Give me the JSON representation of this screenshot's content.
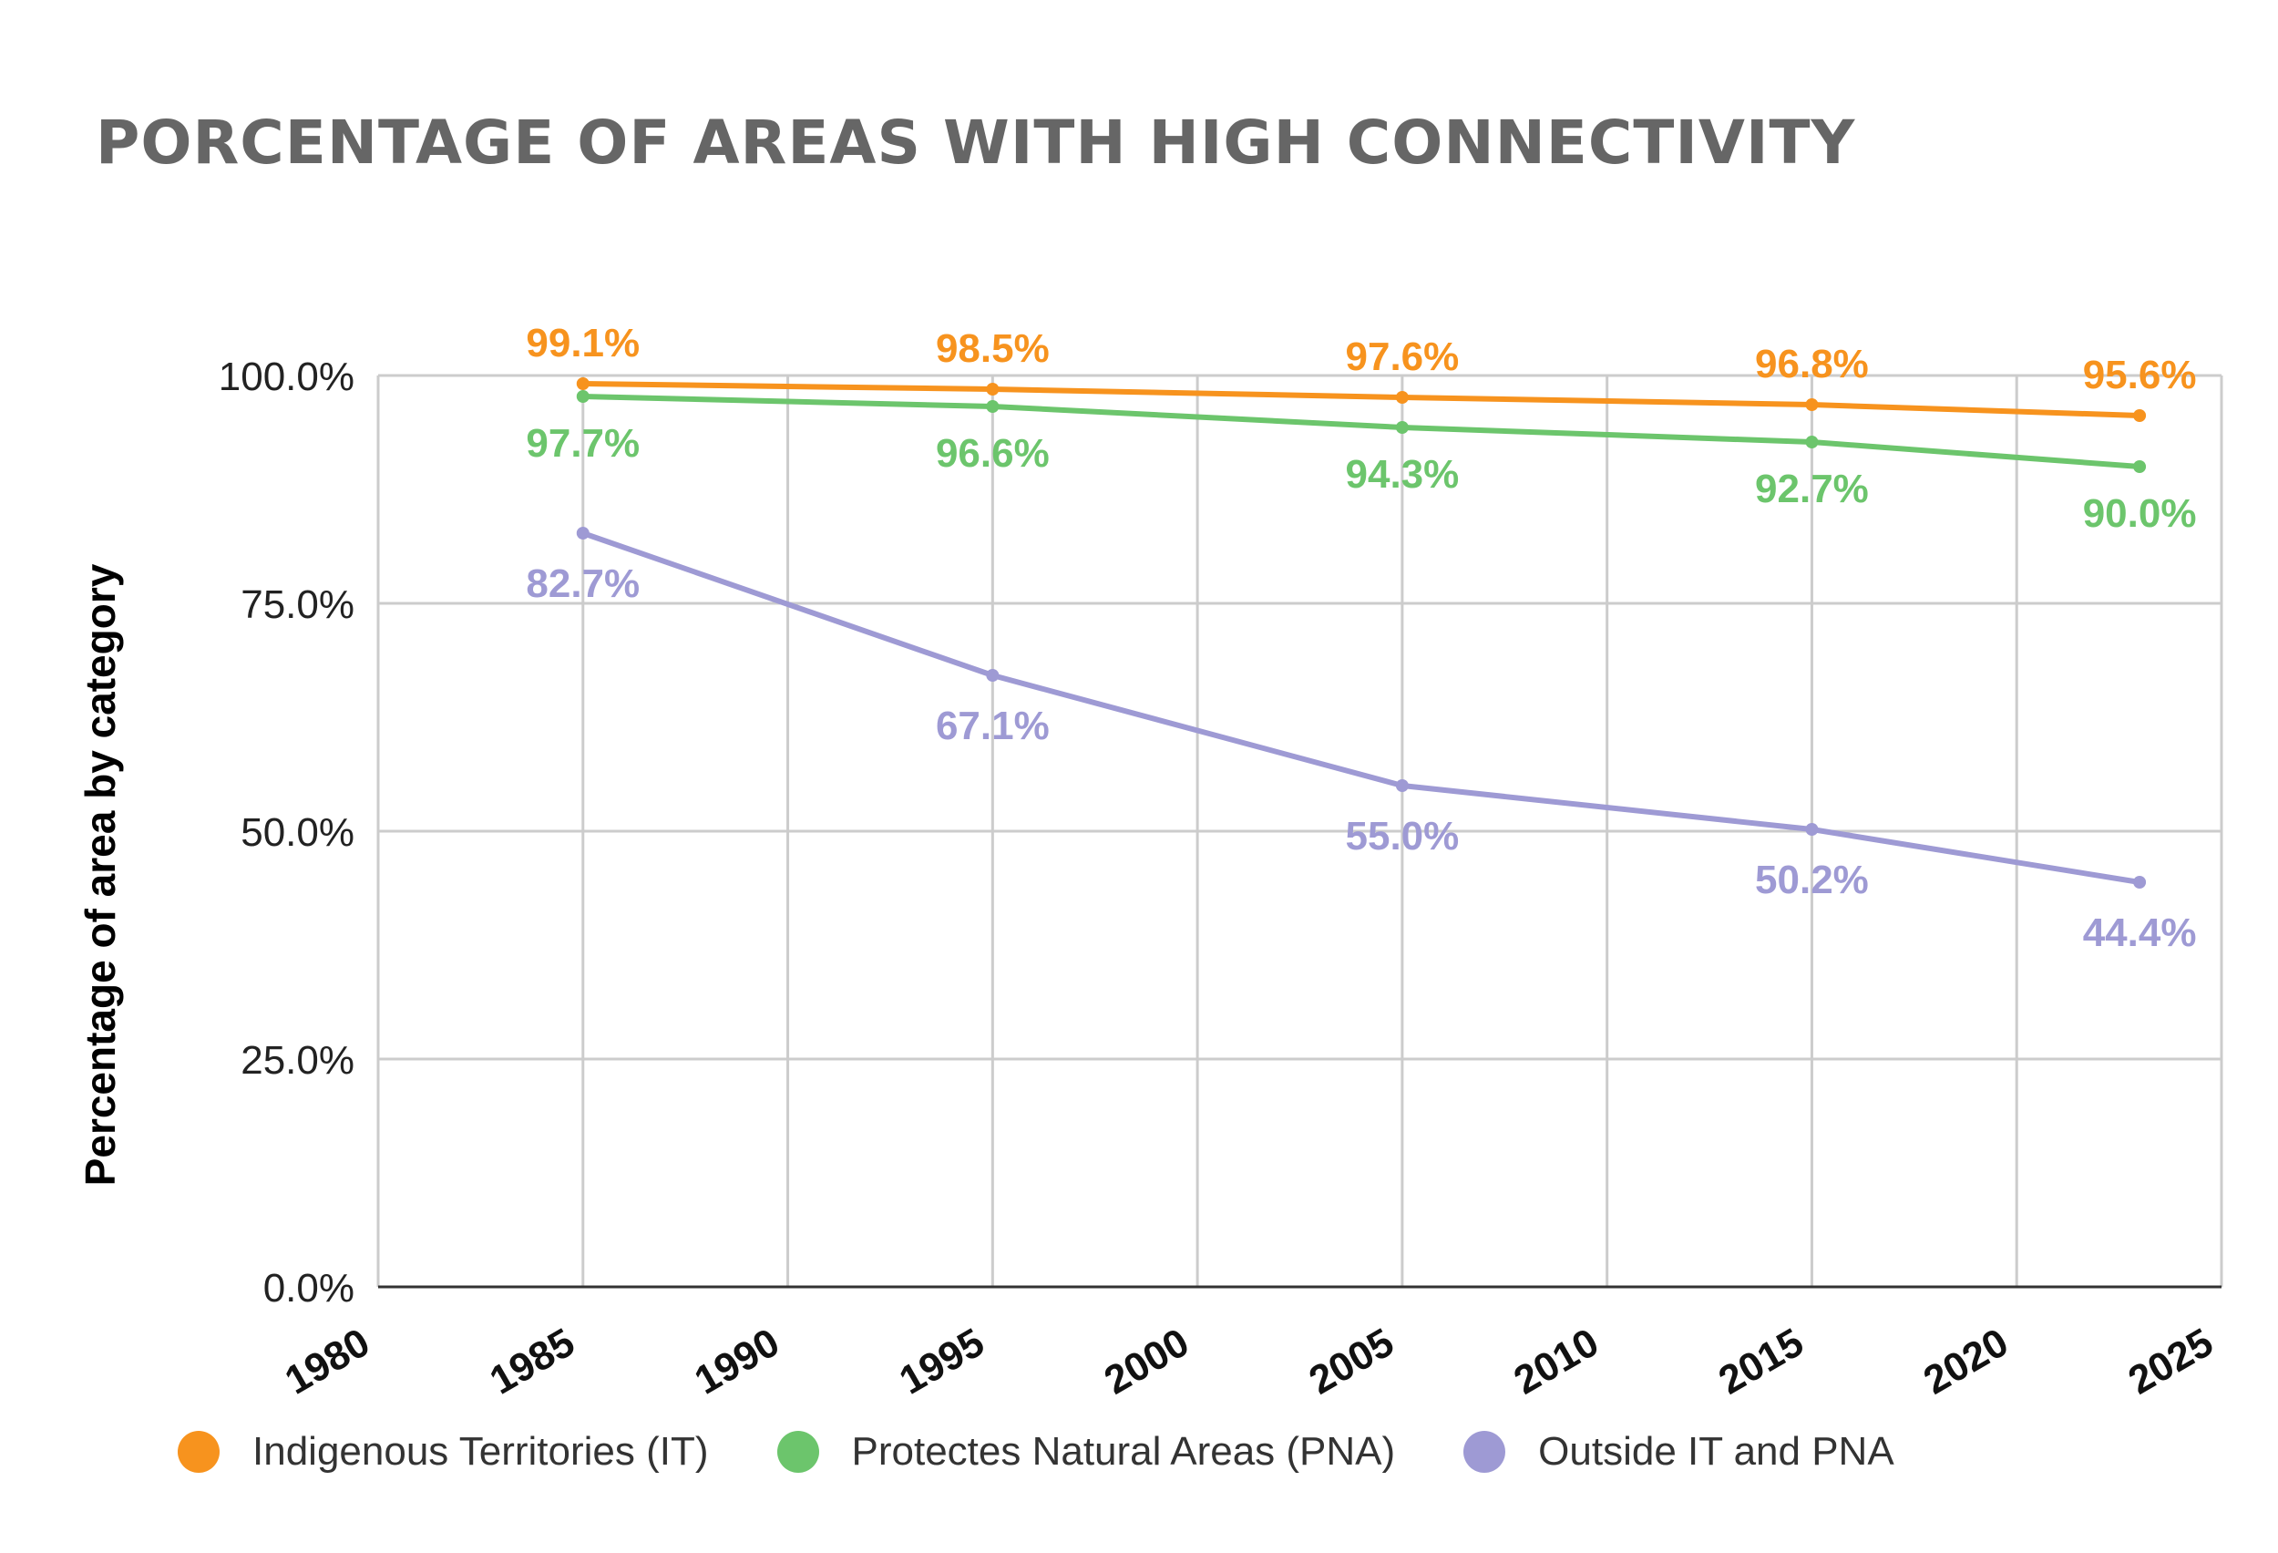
{
  "title": "PORCENTAGE OF AREAS WITH HIGH CONNECTIVITY",
  "chart_data": {
    "type": "line",
    "title": "PORCENTAGE OF AREAS WITH HIGH CONNECTIVITY",
    "xlabel": "",
    "ylabel": "Percentage of area by category",
    "x": [
      1985,
      1995,
      2005,
      2015,
      2023
    ],
    "xlim": [
      1980,
      2025
    ],
    "ylim": [
      0,
      100
    ],
    "x_ticks": [
      "1980",
      "1985",
      "1990",
      "1995",
      "2000",
      "2005",
      "2010",
      "2015",
      "2020",
      "2025"
    ],
    "y_ticks": [
      "0.0%",
      "25.0%",
      "50.0%",
      "75.0%",
      "100.0%"
    ],
    "grid": true,
    "legend_position": "bottom",
    "series": [
      {
        "name": "Indigenous Territories (IT)",
        "color": "#f7931e",
        "values": [
          99.1,
          98.5,
          97.6,
          96.8,
          95.6
        ],
        "labels": [
          "99.1%",
          "98.5%",
          "97.6%",
          "96.8%",
          "95.6%"
        ]
      },
      {
        "name": "Protectes Natural Areas (PNA)",
        "color": "#6cc56c",
        "values": [
          97.7,
          96.6,
          94.3,
          92.7,
          90.0
        ],
        "labels": [
          "97.7%",
          "96.6%",
          "94.3%",
          "92.7%",
          "90.0%"
        ]
      },
      {
        "name": "Outside IT and PNA",
        "color": "#9e9ad4",
        "values": [
          82.7,
          67.1,
          55.0,
          50.2,
          44.4
        ],
        "labels": [
          "82.7%",
          "67.1%",
          "55.0%",
          "50.2%",
          "44.4%"
        ]
      }
    ]
  }
}
